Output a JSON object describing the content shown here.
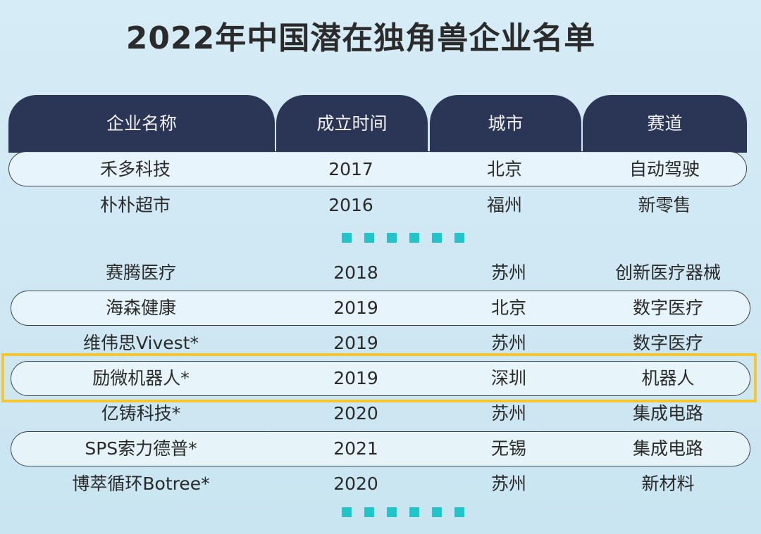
{
  "title": "2022年中国潜在独角兽企业名单",
  "colors": {
    "header": "#2b3656",
    "dots": "#1fc6c9",
    "highlight": "#f5c532"
  },
  "headers": [
    "企业名称",
    "成立时间",
    "城市",
    "赛道"
  ],
  "group1": [
    {
      "name": "禾多科技",
      "year": "2017",
      "city": "北京",
      "track": "自动驾驶"
    },
    {
      "name": "朴朴超市",
      "year": "2016",
      "city": "福州",
      "track": "新零售"
    }
  ],
  "group2": [
    {
      "name": "赛腾医疗",
      "year": "2018",
      "city": "苏州",
      "track": "创新医疗器械"
    },
    {
      "name": "海森健康",
      "year": "2019",
      "city": "北京",
      "track": "数字医疗"
    },
    {
      "name": "维伟思Vivest*",
      "year": "2019",
      "city": "苏州",
      "track": "数字医疗"
    },
    {
      "name": "励微机器人*",
      "year": "2019",
      "city": "深圳",
      "track": "机器人",
      "highlighted": true
    },
    {
      "name": "亿铸科技*",
      "year": "2020",
      "city": "苏州",
      "track": "集成电路"
    },
    {
      "name": "SPS索力德普*",
      "year": "2021",
      "city": "无锡",
      "track": "集成电路"
    },
    {
      "name": "博萃循环Botree*",
      "year": "2020",
      "city": "苏州",
      "track": "新材料"
    }
  ]
}
